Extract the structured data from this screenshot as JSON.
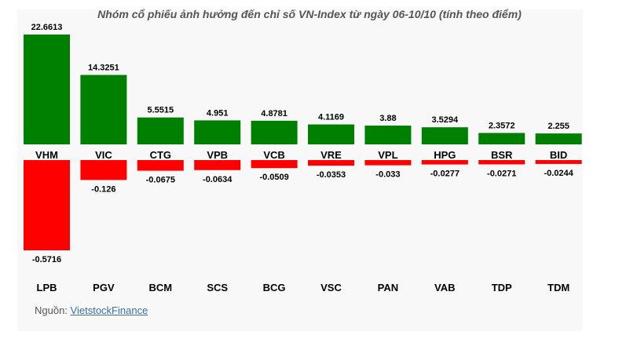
{
  "title": "Nhóm cổ phiếu ảnh hưởng đến chỉ số VN-Index từ ngày 06-10/10 (tính theo điểm)",
  "source_label": "Nguồn: ",
  "source_link": "VietstockFinance",
  "colors": {
    "positive": "#008000",
    "negative": "#ff0000",
    "text": "#000000"
  },
  "chart_data": {
    "type": "bar",
    "series": [
      {
        "categories": [
          "VHM",
          "VIC",
          "CTG",
          "VPB",
          "VCB",
          "VRE",
          "VPL",
          "HPG",
          "BSR",
          "BID"
        ],
        "values": [
          22.6613,
          14.3251,
          5.5515,
          4.951,
          4.8781,
          4.1169,
          3.88,
          3.5294,
          2.3572,
          2.255
        ],
        "labels": [
          "22.6613",
          "14.3251",
          "5.5515",
          "4.951",
          "4.8781",
          "4.1169",
          "3.88",
          "3.5294",
          "2.3572",
          "2.255"
        ]
      },
      {
        "categories": [
          "LPB",
          "PGV",
          "BCM",
          "SCS",
          "BCG",
          "VSC",
          "PAN",
          "VAB",
          "TDP",
          "TDM"
        ],
        "values": [
          -0.5716,
          -0.126,
          -0.0675,
          -0.0634,
          -0.0509,
          -0.0353,
          -0.033,
          -0.0277,
          -0.0271,
          -0.0244
        ],
        "labels": [
          "-0.5716",
          "-0.126",
          "-0.0675",
          "-0.0634",
          "-0.0509",
          "-0.0353",
          "-0.033",
          "-0.0277",
          "-0.0271",
          "-0.0244"
        ]
      }
    ],
    "positive_ylim": [
      0,
      22.6613
    ],
    "negative_ylim": [
      -0.5716,
      0
    ],
    "grid": false,
    "legend": "none"
  }
}
